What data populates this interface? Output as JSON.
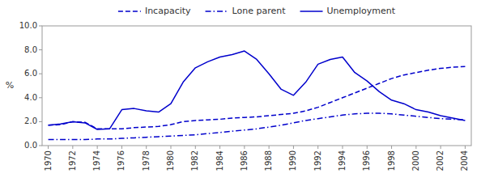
{
  "chart_data": {
    "type": "line",
    "ylabel": "%",
    "x": [
      1970,
      1971,
      1972,
      1973,
      1974,
      1975,
      1976,
      1977,
      1978,
      1979,
      1980,
      1981,
      1982,
      1983,
      1984,
      1985,
      1986,
      1987,
      1988,
      1989,
      1990,
      1991,
      1992,
      1993,
      1994,
      1995,
      1996,
      1997,
      1998,
      1999,
      2000,
      2001,
      2002,
      2003,
      2004
    ],
    "series": [
      {
        "name": "Incapacity",
        "color": "#0000cc",
        "line_style": "dashed",
        "values": [
          1.7,
          1.75,
          2.0,
          1.95,
          1.4,
          1.4,
          1.4,
          1.5,
          1.55,
          1.6,
          1.75,
          2.0,
          2.1,
          2.15,
          2.2,
          2.3,
          2.35,
          2.4,
          2.5,
          2.6,
          2.7,
          2.9,
          3.2,
          3.6,
          4.0,
          4.4,
          4.8,
          5.2,
          5.6,
          5.9,
          6.1,
          6.3,
          6.45,
          6.55,
          6.6
        ]
      },
      {
        "name": "Lone parent",
        "color": "#0000cc",
        "line_style": "dashdot",
        "values": [
          0.5,
          0.5,
          0.5,
          0.5,
          0.55,
          0.55,
          0.6,
          0.65,
          0.7,
          0.75,
          0.8,
          0.85,
          0.9,
          1.0,
          1.1,
          1.2,
          1.3,
          1.4,
          1.55,
          1.7,
          1.9,
          2.1,
          2.25,
          2.4,
          2.55,
          2.65,
          2.7,
          2.7,
          2.65,
          2.55,
          2.45,
          2.35,
          2.25,
          2.2,
          2.15
        ]
      },
      {
        "name": "Unemployment",
        "color": "#0000cc",
        "line_style": "solid",
        "values": [
          1.7,
          1.8,
          2.0,
          1.9,
          1.35,
          1.4,
          3.0,
          3.1,
          2.9,
          2.8,
          3.5,
          5.3,
          6.5,
          7.0,
          7.4,
          7.6,
          7.9,
          7.2,
          6.0,
          4.7,
          4.2,
          5.3,
          6.8,
          7.2,
          7.4,
          6.1,
          5.4,
          4.5,
          3.8,
          3.5,
          3.0,
          2.8,
          2.5,
          2.3,
          2.1
        ]
      }
    ],
    "xlim": [
      1969.5,
      2004.5
    ],
    "xticks": [
      1970,
      1972,
      1974,
      1976,
      1978,
      1980,
      1982,
      1984,
      1986,
      1988,
      1990,
      1992,
      1994,
      1996,
      1998,
      2000,
      2002,
      2004
    ],
    "ylim": [
      0.0,
      10.0
    ],
    "yticks": [
      {
        "value": 0.0,
        "label": "0.0"
      },
      {
        "value": 2.0,
        "label": "2.0"
      },
      {
        "value": 4.0,
        "label": "4.0"
      },
      {
        "value": 6.0,
        "label": "6.0"
      },
      {
        "value": 8.0,
        "label": "8.0"
      },
      {
        "value": 10.0,
        "label": "10.0"
      }
    ],
    "grid": false,
    "legend": "top"
  }
}
